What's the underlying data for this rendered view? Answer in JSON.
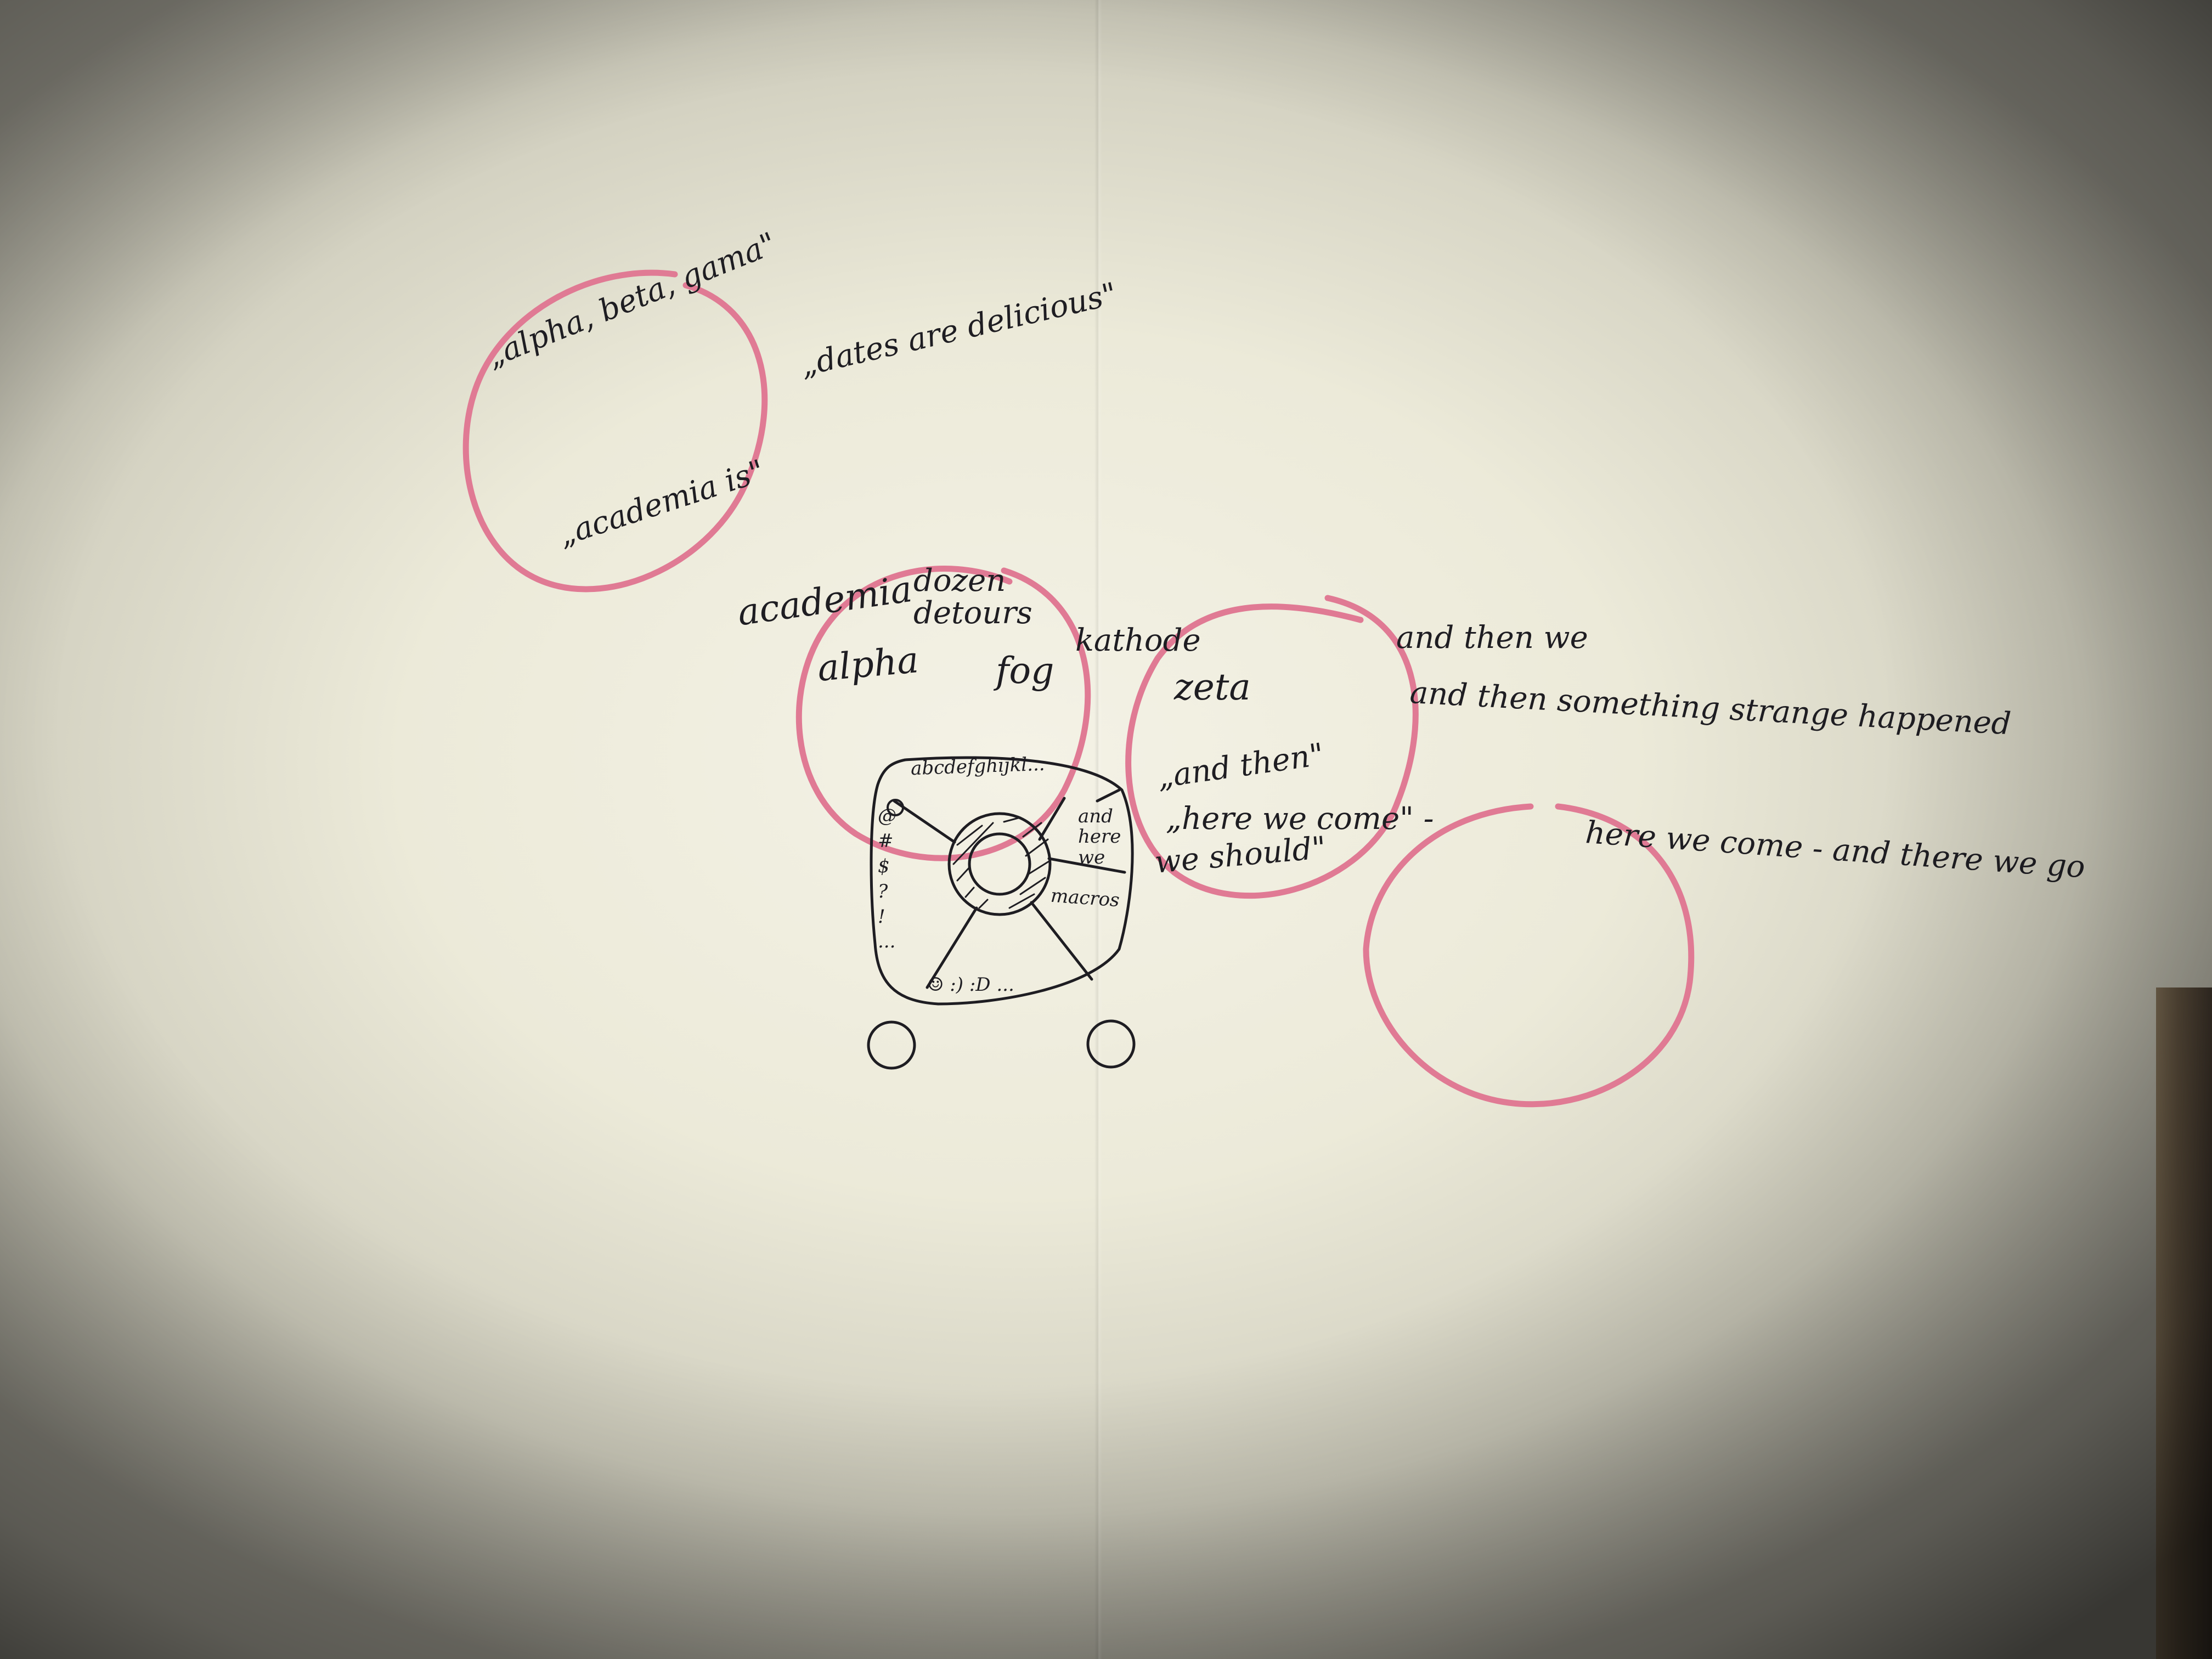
{
  "colors": {
    "ink": "#1e1d22",
    "marker": "#e07a94",
    "paper": "#f1efe2"
  },
  "notes": {
    "alpha_beta_gamma": "„alpha, beta, gama\"",
    "dates_are_delicious": "„dates are delicious\"",
    "academia_is": "„academia is\"",
    "academia": "academia",
    "dozen_detours": "dozen detours",
    "alpha": "alpha",
    "fog": "fog",
    "kathode": "kathode",
    "zeta": "zeta",
    "and_then_we": "and then we",
    "and_then_something": "and then something strange happened",
    "and_then_quote": "„and then\"",
    "here_we_come_quote": "„here we come\" -",
    "we_should": "we should\"",
    "here_we_come_and_there_we_go": "here we come - and there we go"
  },
  "wheel": {
    "alphabet": "abcdefghijkl...",
    "left_symbols": "@ # $ ? ! ...",
    "segment_phrase": "and here we",
    "segment_macros": "macros",
    "emoticons": "☺ :) :D ..."
  },
  "icons": {
    "circles": "marker-circle",
    "wheel": "radial-keyboard-sketch",
    "small_circles": "button-circle"
  }
}
